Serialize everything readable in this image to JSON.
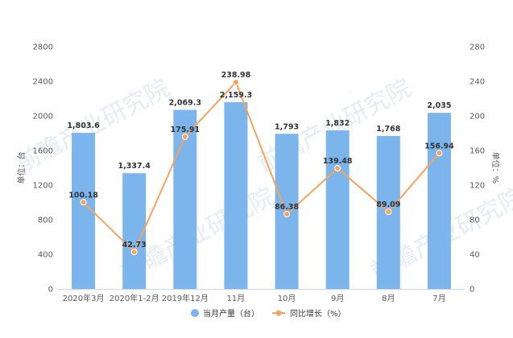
{
  "chart_data": {
    "type": "bar",
    "categories": [
      "2020年3月",
      "2020年1-2月",
      "2019年12月",
      "11月",
      "10月",
      "9月",
      "8月",
      "7月"
    ],
    "series": [
      {
        "name": "当月产量（台）",
        "type": "bar",
        "axis": "left",
        "values": [
          1803.6,
          1337.4,
          2069.3,
          2159.3,
          1793,
          1832,
          1768,
          2035
        ],
        "labels": [
          "1,803.6",
          "1,337.4",
          "2,069.3",
          "2,159.3",
          "1,793",
          "1,832",
          "1,768",
          "2,035"
        ],
        "color": "#7cb5ec"
      },
      {
        "name": "同比增长（%）",
        "type": "line",
        "axis": "right",
        "values": [
          100.18,
          42.73,
          175.91,
          238.98,
          86.38,
          139.48,
          89.09,
          156.94
        ],
        "labels": [
          "100.18",
          "42.73",
          "175.91",
          "238.98",
          "86.38",
          "139.48",
          "89.09",
          "156.94"
        ],
        "color": "#f7a35c"
      }
    ],
    "ylabel": "单位：台",
    "y2label": "单位：%",
    "ylim": [
      0,
      2800
    ],
    "y2lim": [
      0,
      280
    ],
    "yticks": [
      0,
      400,
      800,
      1200,
      1600,
      2000,
      2400,
      2800
    ],
    "y2ticks": [
      0,
      40,
      80,
      120,
      160,
      200,
      240,
      280
    ],
    "legend_position": "bottom",
    "grid": false
  },
  "watermark": "前瞻产业研究院"
}
